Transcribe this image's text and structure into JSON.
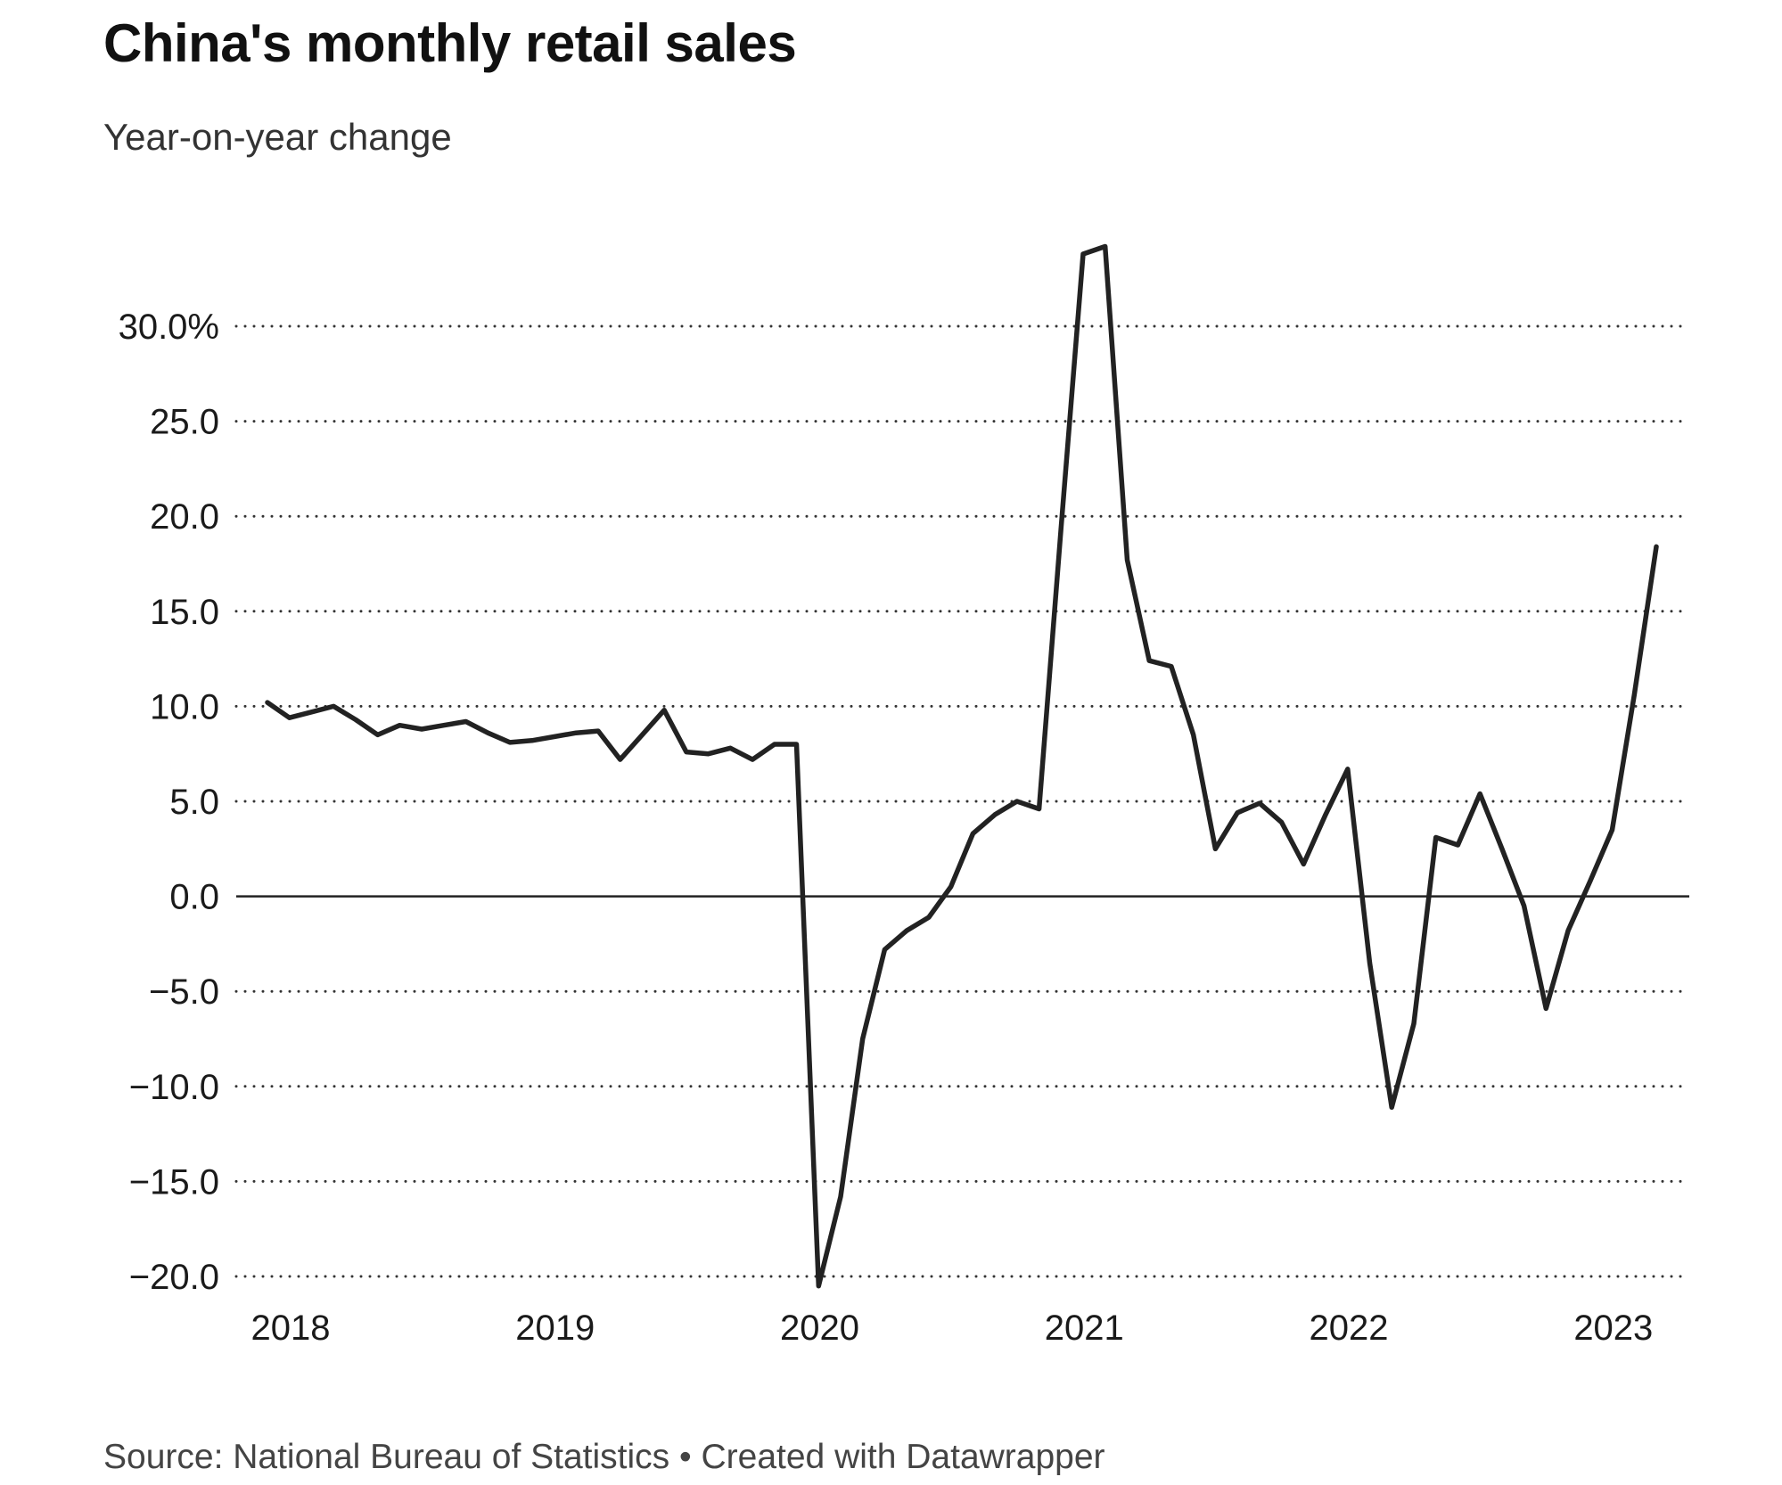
{
  "chart_data": {
    "type": "line",
    "title": "China's monthly retail sales",
    "subtitle": "Year-on-year change",
    "source": "Source: National Bureau of Statistics • Created with Datawrapper",
    "xlabel": "",
    "ylabel": "",
    "ylim": [
      -20,
      34
    ],
    "xlim": [
      "2018-01",
      "2023-04"
    ],
    "grid": true,
    "legend": "none",
    "line_color": "#222222",
    "y_ticks": [
      {
        "value": 30,
        "label": "30.0%"
      },
      {
        "value": 25,
        "label": "25.0"
      },
      {
        "value": 20,
        "label": "20.0"
      },
      {
        "value": 15,
        "label": "15.0"
      },
      {
        "value": 10,
        "label": "10.0"
      },
      {
        "value": 5,
        "label": "5.0"
      },
      {
        "value": 0,
        "label": "0.0"
      },
      {
        "value": -5,
        "label": "−5.0"
      },
      {
        "value": -10,
        "label": "−10.0"
      },
      {
        "value": -15,
        "label": "−15.0"
      },
      {
        "value": -20,
        "label": "−20.0"
      }
    ],
    "x_ticks": [
      {
        "value": "2018-01",
        "label": "2018"
      },
      {
        "value": "2019-01",
        "label": "2019"
      },
      {
        "value": "2020-01",
        "label": "2020"
      },
      {
        "value": "2021-01",
        "label": "2021"
      },
      {
        "value": "2022-01",
        "label": "2022"
      },
      {
        "value": "2023-01",
        "label": "2023"
      }
    ],
    "series": [
      {
        "x": [
          "2018-01",
          "2018-02",
          "2018-03",
          "2018-04",
          "2018-05",
          "2018-06",
          "2018-07",
          "2018-08",
          "2018-09",
          "2018-10",
          "2018-11",
          "2018-12",
          "2019-01",
          "2019-02",
          "2019-03",
          "2019-04",
          "2019-05",
          "2019-06",
          "2019-07",
          "2019-08",
          "2019-09",
          "2019-10",
          "2019-11",
          "2019-12",
          "2020-01",
          "2020-02",
          "2020-03",
          "2020-04",
          "2020-05",
          "2020-06",
          "2020-07",
          "2020-08",
          "2020-09",
          "2020-10",
          "2020-11",
          "2020-12",
          "2021-01",
          "2021-02",
          "2021-03",
          "2021-04",
          "2021-05",
          "2021-06",
          "2021-07",
          "2021-08",
          "2021-09",
          "2021-10",
          "2021-11",
          "2021-12",
          "2022-01",
          "2022-02",
          "2022-03",
          "2022-04",
          "2022-05",
          "2022-06",
          "2022-07",
          "2022-08",
          "2022-09",
          "2022-10",
          "2022-11",
          "2022-12",
          "2023-01",
          "2023-02",
          "2023-03",
          "2023-04"
        ],
        "values": [
          10.2,
          9.4,
          9.7,
          10.0,
          9.3,
          8.5,
          9.0,
          8.8,
          9.0,
          9.2,
          8.6,
          8.1,
          8.2,
          8.4,
          8.6,
          8.7,
          7.2,
          8.5,
          9.8,
          7.6,
          7.5,
          7.8,
          7.2,
          8.0,
          8.0,
          -20.5,
          -15.8,
          -7.5,
          -2.8,
          -1.8,
          -1.1,
          0.5,
          3.3,
          4.3,
          5.0,
          4.6,
          19.4,
          33.8,
          34.2,
          17.7,
          12.4,
          12.1,
          8.5,
          2.5,
          4.4,
          4.9,
          3.9,
          1.7,
          4.3,
          6.7,
          -3.5,
          -11.1,
          -6.7,
          3.1,
          2.7,
          5.4,
          2.5,
          -0.5,
          -5.9,
          -1.8,
          0.8,
          3.5,
          10.6,
          18.4
        ]
      }
    ]
  }
}
